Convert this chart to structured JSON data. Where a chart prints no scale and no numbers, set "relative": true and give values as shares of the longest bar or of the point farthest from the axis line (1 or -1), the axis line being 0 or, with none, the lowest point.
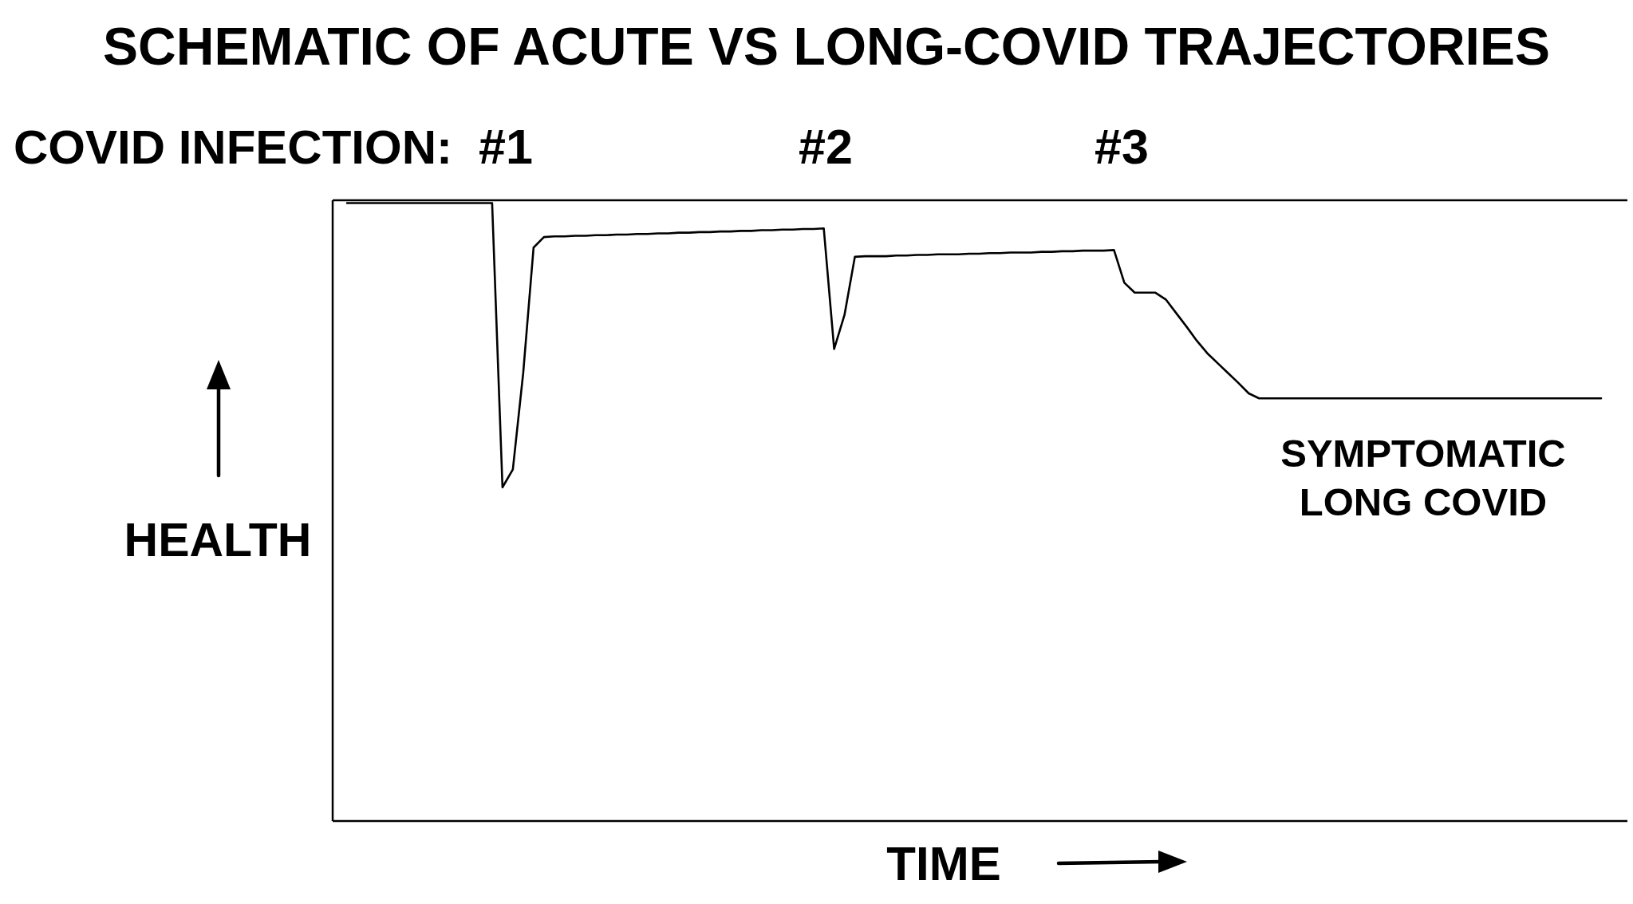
{
  "chart_data": {
    "type": "line",
    "title": "SCHEMATIC OF ACUTE VS LONG-COVID TRAJECTORIES",
    "xlabel": "TIME",
    "ylabel": "HEALTH",
    "annotations": [
      "COVID INFECTION:",
      "#1",
      "#2",
      "#3",
      "SYMPTOMATIC LONG COVID"
    ],
    "categories": [
      null,
      null,
      null,
      null,
      null,
      null,
      null,
      null,
      null,
      null,
      null,
      null,
      null,
      null,
      null,
      null,
      null,
      null,
      null,
      null,
      null,
      null,
      null,
      null,
      null,
      null,
      null,
      null,
      null,
      null,
      null,
      null,
      null,
      null,
      null,
      null,
      null,
      null,
      null,
      null,
      null,
      null,
      null,
      null,
      null,
      null,
      null,
      null,
      null,
      null,
      null,
      null,
      null,
      null,
      null,
      null,
      null,
      null,
      null,
      null,
      null,
      null,
      null,
      null,
      null,
      null,
      null,
      null,
      null,
      null,
      null,
      null,
      null,
      null,
      null,
      null,
      null,
      null,
      null,
      null,
      null,
      null,
      null,
      null,
      null,
      null,
      null,
      null,
      null,
      null,
      null,
      null,
      null,
      null,
      null,
      null,
      null,
      null,
      null,
      null,
      null,
      null,
      null,
      null,
      null,
      null,
      null,
      null,
      null,
      null,
      null,
      null,
      null,
      null,
      null,
      null,
      null,
      null,
      null,
      null,
      null,
      null
    ],
    "series": [
      {
        "color": "#000000",
        "values": [
          1,
          1,
          1,
          1,
          1,
          1,
          1,
          1,
          1,
          1,
          1,
          1,
          1,
          1,
          1,
          0.54,
          0.569,
          0.725,
          0.928,
          0.945,
          0.946,
          0.946,
          0.947,
          0.947,
          0.948,
          0.948,
          0.949,
          0.949,
          0.95,
          0.95,
          0.951,
          0.951,
          0.952,
          0.952,
          0.953,
          0.953,
          0.954,
          0.954,
          0.955,
          0.955,
          0.956,
          0.956,
          0.957,
          0.957,
          0.958,
          0.958,
          0.959,
          0.764,
          0.819,
          0.913,
          0.914,
          0.914,
          0.914,
          0.915,
          0.915,
          0.916,
          0.916,
          0.917,
          0.917,
          0.917,
          0.918,
          0.918,
          0.919,
          0.919,
          0.92,
          0.92,
          0.92,
          0.921,
          0.921,
          0.922,
          0.922,
          0.923,
          0.923,
          0.923,
          0.924,
          0.871,
          0.855,
          0.855,
          0.855,
          0.844,
          0.822,
          0.8,
          0.777,
          0.757,
          0.741,
          0.725,
          0.709,
          0.692,
          0.684,
          0.684,
          0.684,
          0.684,
          0.684,
          0.684,
          0.684,
          0.684,
          0.684,
          0.684,
          0.684,
          0.684,
          0.684,
          0.684,
          0.684,
          0.684,
          0.684,
          0.684,
          0.684,
          0.684,
          0.684,
          0.684,
          0.684,
          0.684,
          0.684,
          0.684,
          0.684,
          0.684,
          0.684,
          0.684,
          0.684,
          0.684,
          0.684,
          0.684
        ]
      }
    ],
    "relative": true,
    "marker": "none",
    "line_style": "solid"
  }
}
